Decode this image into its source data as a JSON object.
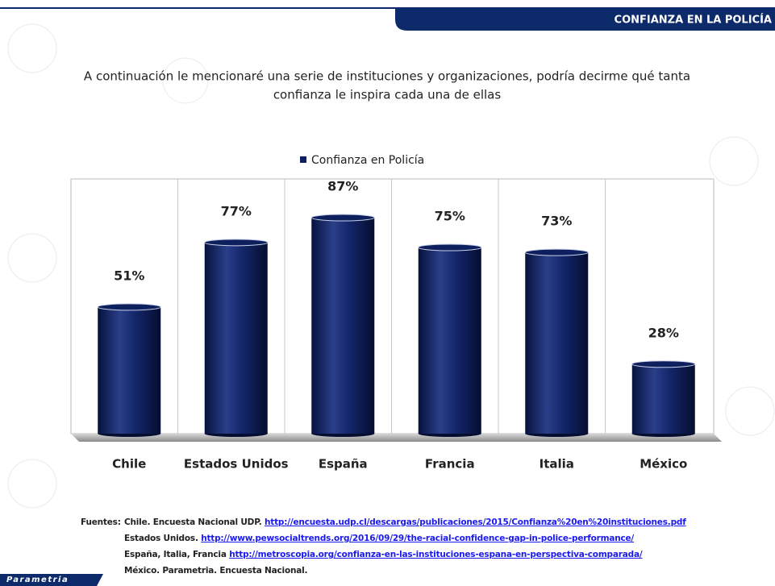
{
  "header": {
    "title": "CONFIANZA EN LA POLICÍA"
  },
  "question": [
    "A continuación le mencionaré una serie de instituciones y organizaciones, podría decirme qué tanta",
    "confianza le inspira cada una de ellas"
  ],
  "chart_data": {
    "type": "bar",
    "categories": [
      "Chile",
      "Estados Unidos",
      "España",
      "Francia",
      "Italia",
      "México"
    ],
    "series": [
      {
        "name": "Confianza en Policía",
        "color": "#0d1f5c",
        "values": [
          51,
          77,
          87,
          75,
          73,
          28
        ],
        "value_labels": [
          "51%",
          "77%",
          "87%",
          "75%",
          "73%",
          "28%"
        ]
      }
    ],
    "ylim": [
      0,
      100
    ],
    "legend": "top"
  },
  "sources": {
    "label": "Fuentes:",
    "lines": [
      {
        "text": "Chile. Encuesta Nacional UDP.",
        "link": "http://encuesta.udp.cl/descargas/publicaciones/2015/Confianza%20en%20instituciones.pdf"
      },
      {
        "text": "Estados Unidos.",
        "link": "http://www.pewsocialtrends.org/2016/09/29/the-racial-confidence-gap-in-police-performance/"
      },
      {
        "text": "España, Italia, Francia",
        "link": "http://metroscopia.org/confianza-en-las-instituciones-espana-en-perspectiva-comparada/"
      },
      {
        "text": "México. Parametria. Encuesta Nacional."
      }
    ]
  },
  "logo": "Parametria"
}
